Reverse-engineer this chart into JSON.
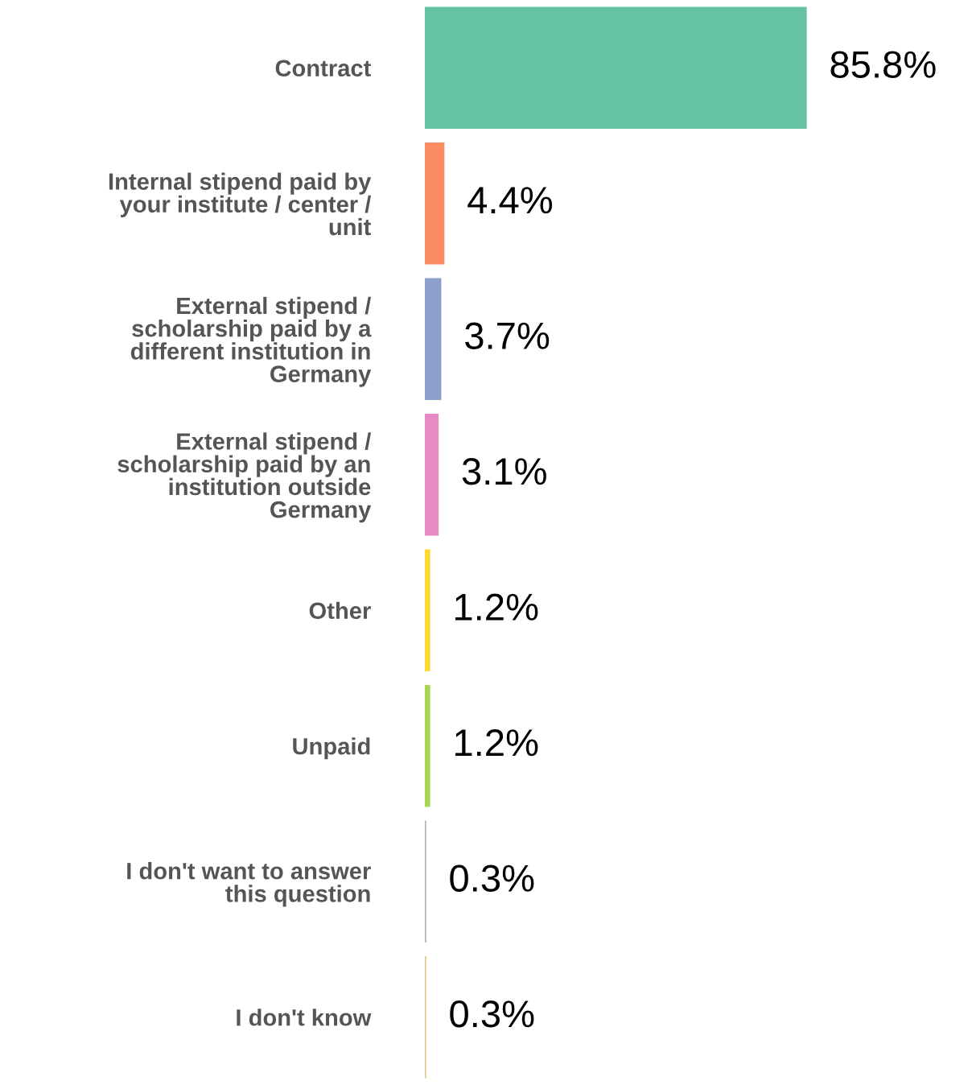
{
  "chart_data": {
    "type": "bar",
    "orientation": "horizontal",
    "categories": [
      "Contract",
      "Internal stipend paid by your institute / center / unit",
      "External stipend / scholarship paid by a different institution in Germany",
      "External stipend / scholarship paid by an institution outside Germany",
      "Other",
      "Unpaid",
      "I don't want to answer this question",
      "I don't know"
    ],
    "values": [
      85.8,
      4.4,
      3.7,
      3.1,
      1.2,
      1.2,
      0.3,
      0.3
    ],
    "colors": [
      "#66c2a5",
      "#fc8d62",
      "#8da0cb",
      "#e78ac3",
      "#ffd92f",
      "#a6d854",
      "#b3b3b3",
      "#e5c494"
    ],
    "value_labels": [
      "85.8%",
      "4.4%",
      "3.7%",
      "3.1%",
      "1.2%",
      "1.2%",
      "0.3%",
      "0.3%"
    ],
    "grid": false,
    "legend": false
  }
}
